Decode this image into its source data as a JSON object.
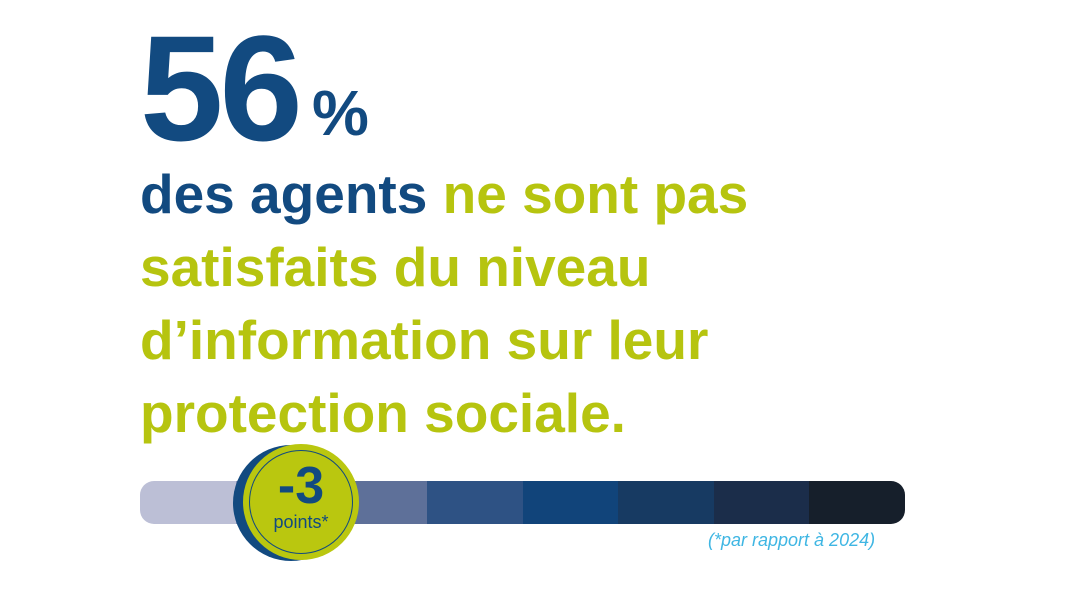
{
  "headline": {
    "value": "56",
    "unit": "%"
  },
  "statement": {
    "highlight": "des agents",
    "rest": " ne sont pas satisfaits du niveau d’information sur leur protection sociale."
  },
  "badge": {
    "change": "-3",
    "label": "points*"
  },
  "footnote": "(*par rapport à 2024)",
  "colors": {
    "primary_blue": "#124a80",
    "accent_green": "#b6c40f",
    "footnote_blue": "#3fb6e3",
    "scale": [
      "#bcbfd6",
      "#8a93b8",
      "#5e7099",
      "#2e5284",
      "#11447a",
      "#173a62",
      "#1b2d4a",
      "#161f2b"
    ]
  }
}
